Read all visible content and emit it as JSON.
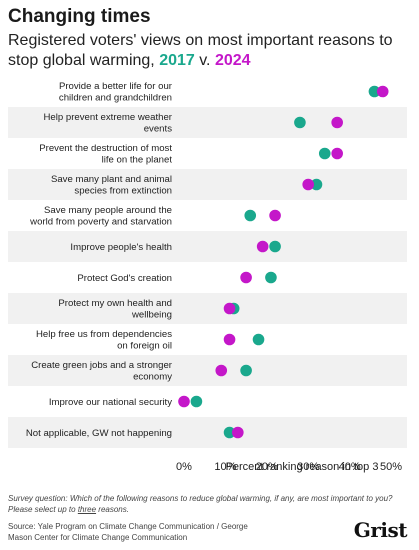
{
  "title": "Changing times",
  "subtitle_prefix": "Registered voters' views on most important reasons to stop global warming, ",
  "subtitle_year1": "2017",
  "subtitle_mid": " v. ",
  "subtitle_year2": "2024",
  "note_part1": "Survey question: Which of the following reasons to reduce global warming, if any, are most important to you? Please select up to ",
  "note_underlined": "three",
  "note_part2": " reasons.",
  "source": "Source: Yale Program on Climate Change Communication / George Mason Center for Climate Change Communication",
  "logo": "Grist",
  "chart_data": {
    "type": "scatter",
    "xlabel": "Percent ranking reason in top 3",
    "xlim": [
      0,
      50
    ],
    "xticks": [
      0,
      10,
      20,
      30,
      40,
      50
    ],
    "xtick_labels": [
      "0%",
      "10%",
      "20%",
      "30%",
      "40%",
      "50%"
    ],
    "categories": [
      [
        "Provide a better life for our",
        "children and grandchildren"
      ],
      [
        "Help prevent extreme weather",
        "events"
      ],
      [
        "Prevent the destruction of most",
        "life on the planet"
      ],
      [
        "Save many plant and animal",
        "species from extinction"
      ],
      [
        "Save many people around the",
        "world from poverty and starvation"
      ],
      [
        "Improve people's health"
      ],
      [
        "Protect God's creation"
      ],
      [
        "Protect my own health and",
        "wellbeing"
      ],
      [
        "Help free us from dependencies",
        "on foreign oil"
      ],
      [
        "Create green jobs and a stronger",
        "economy"
      ],
      [
        "Improve our national security"
      ],
      [
        "Not applicable, GW not happening"
      ]
    ],
    "series": [
      {
        "name": "2017",
        "color": "#1aa88d",
        "values": [
          46,
          28,
          34,
          32,
          16,
          22,
          21,
          12,
          18,
          15,
          3,
          11
        ]
      },
      {
        "name": "2024",
        "color": "#c417c9",
        "values": [
          48,
          37,
          37,
          30,
          22,
          19,
          15,
          11,
          11,
          9,
          0,
          13
        ]
      }
    ],
    "row_band_color": "#f1f1f1",
    "grid": false
  }
}
